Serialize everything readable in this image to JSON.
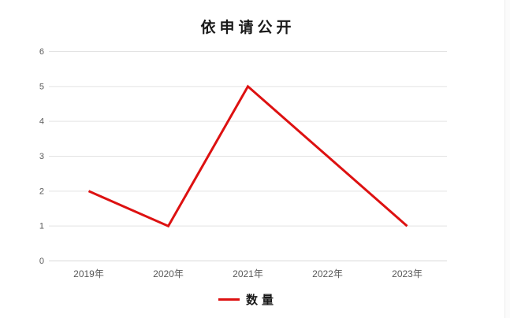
{
  "chart": {
    "title": "依申请公开",
    "legend": {
      "label": "数量"
    }
  },
  "chart_data": {
    "type": "line",
    "title": "依申请公开",
    "categories": [
      "2019年",
      "2020年",
      "2021年",
      "2022年",
      "2023年"
    ],
    "series": [
      {
        "name": "数量",
        "values": [
          2,
          1,
          5,
          3,
          1
        ],
        "color": "#dd1111"
      }
    ],
    "xlabel": "",
    "ylabel": "",
    "ylim": [
      0,
      6
    ],
    "yticks": [
      0,
      1,
      2,
      3,
      4,
      5,
      6
    ],
    "grid": "horizontal",
    "legend_position": "bottom",
    "colors": {
      "gridline": "#e3e3e3",
      "axis_line": "#d9d9d9",
      "tick_label": "#595959",
      "title": "#1a1a1a",
      "background": "#ffffff",
      "panel_border": "#ededed"
    }
  }
}
